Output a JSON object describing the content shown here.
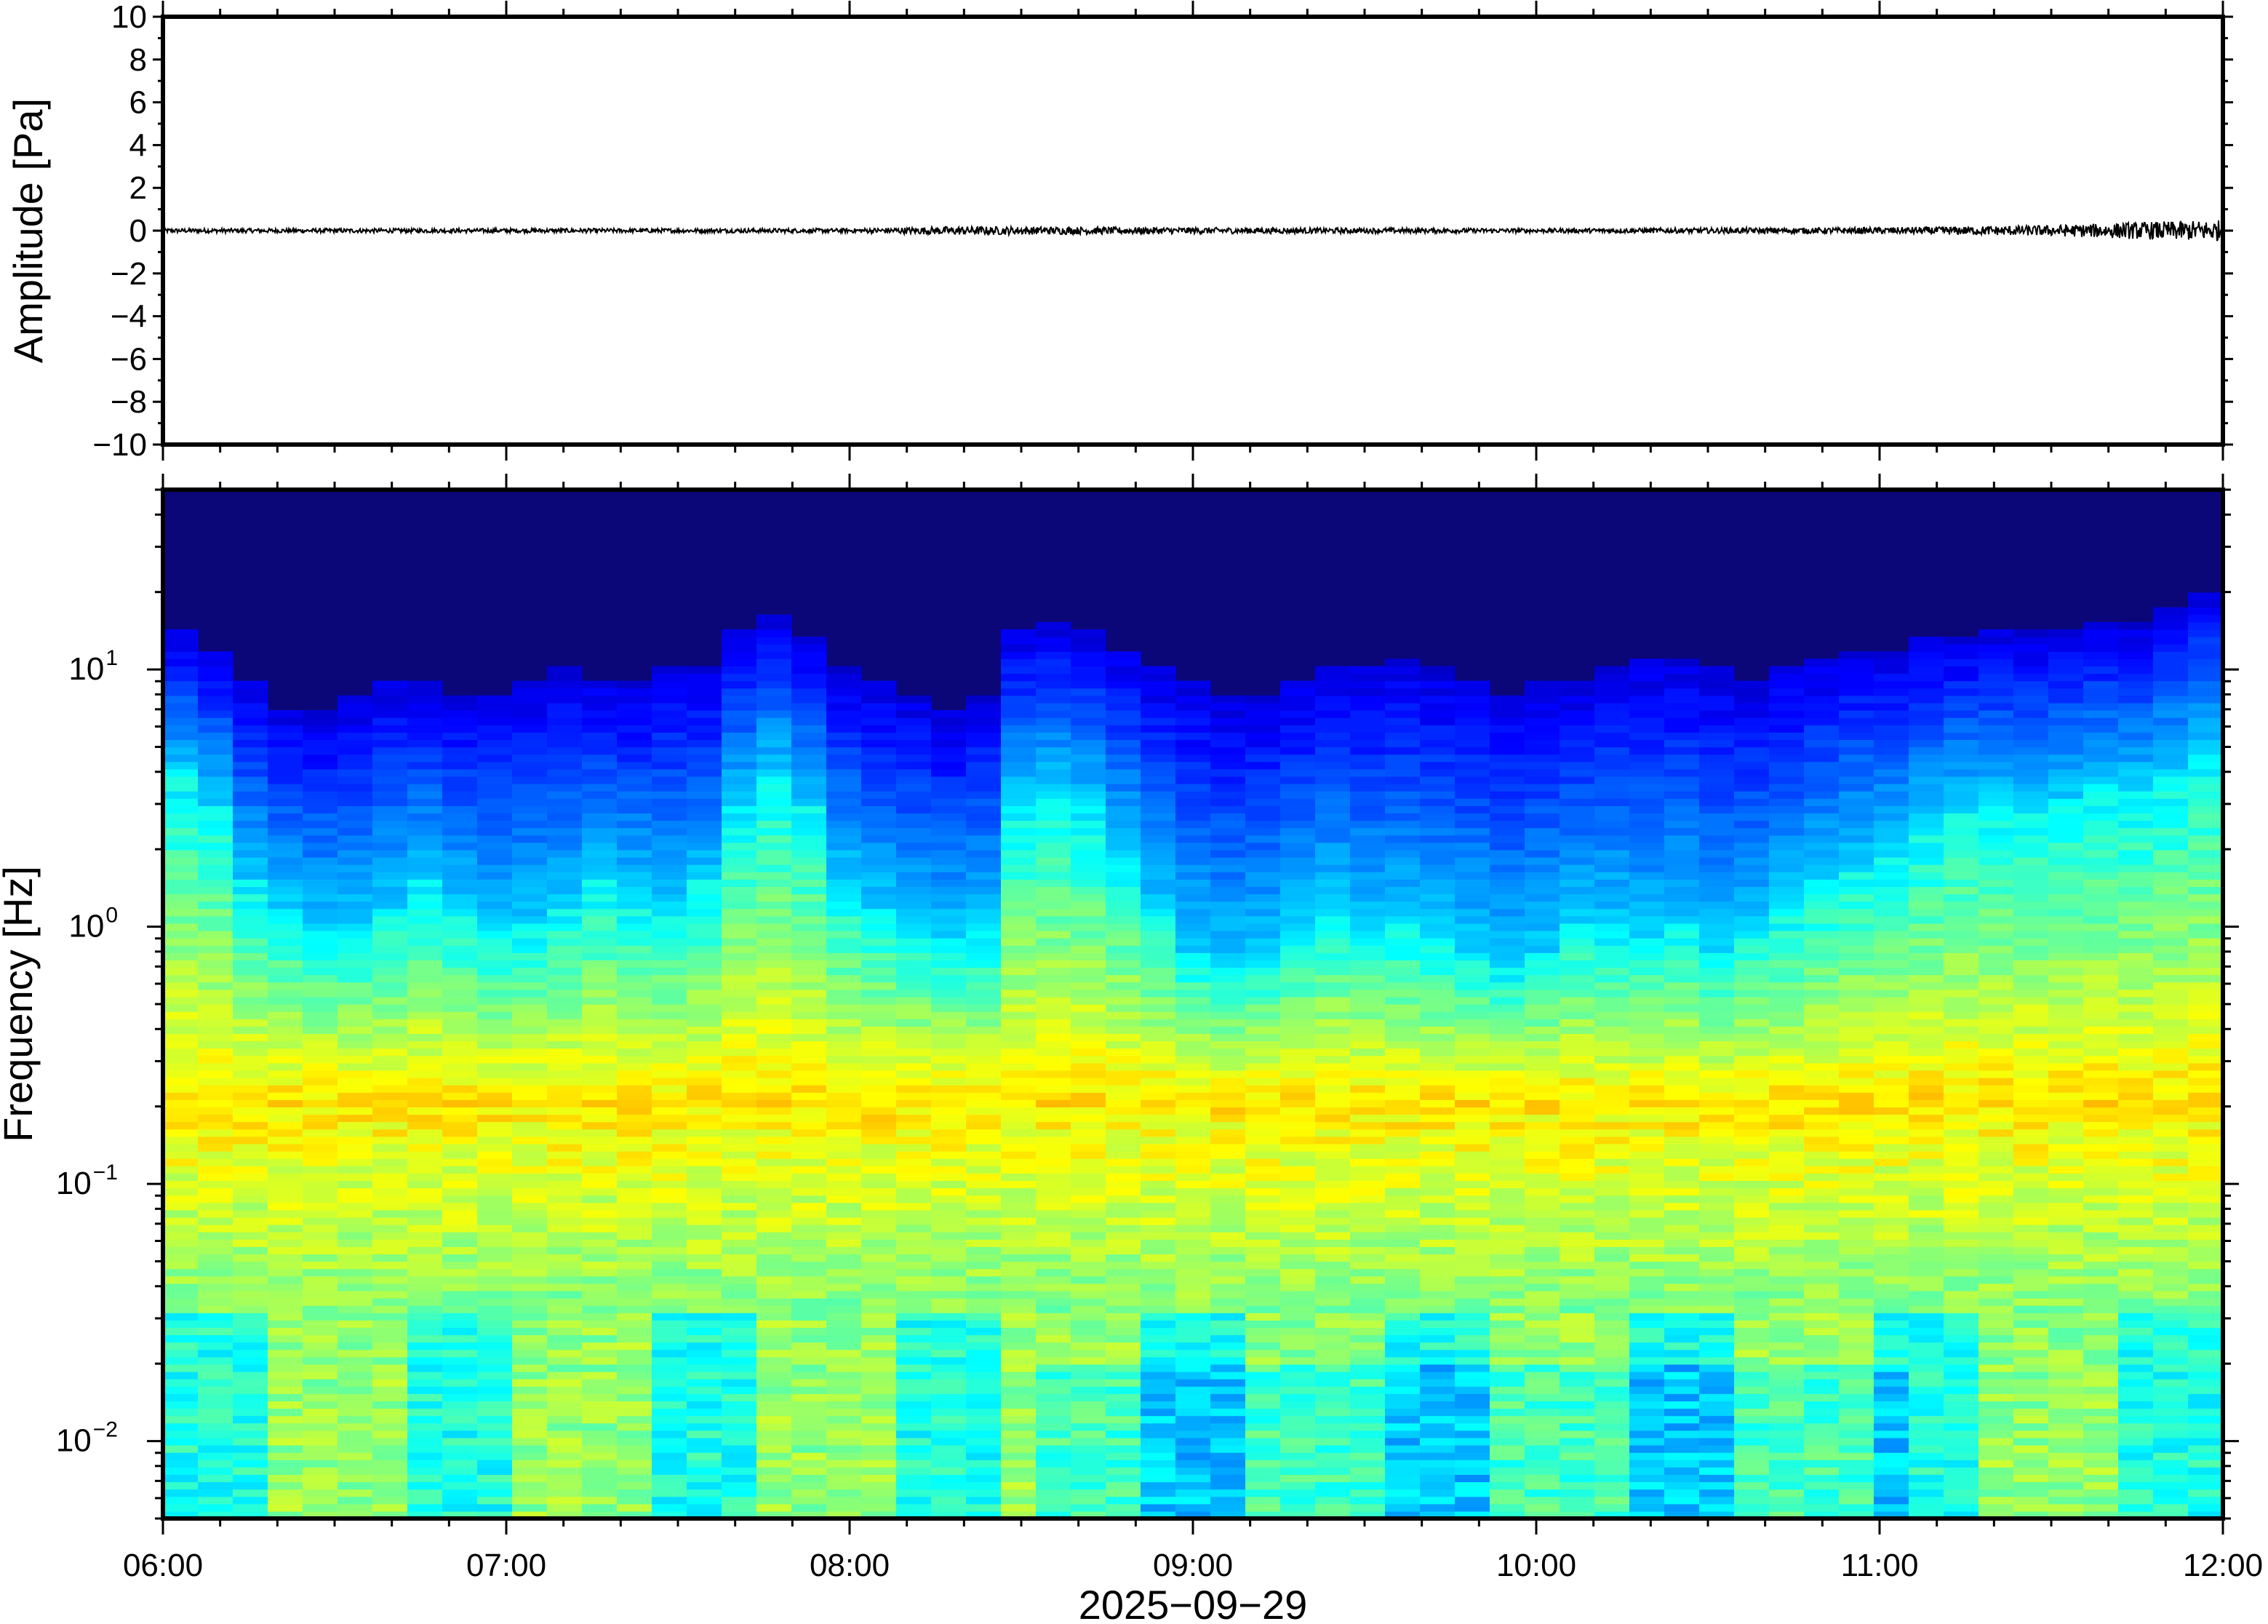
{
  "chart_data": [
    {
      "type": "line",
      "ylabel": "Amplitude [Pa]",
      "ylim": [
        -10,
        10
      ],
      "yticks": [
        10,
        8,
        6,
        4,
        2,
        0,
        -2,
        -4,
        -6,
        -8,
        -10
      ],
      "ytick_labels": [
        "10",
        "8",
        "6",
        "4",
        "2",
        "0",
        "−2",
        "−4",
        "−6",
        "−8",
        "−10"
      ],
      "series": [
        {
          "x_hours": [
            6.0,
            7.0,
            8.0,
            8.3,
            9.0,
            10.0,
            11.0,
            11.5,
            11.75,
            12.0
          ],
          "y_envelope": [
            0.1,
            0.1,
            0.1,
            0.2,
            0.15,
            0.1,
            0.15,
            0.25,
            0.4,
            0.5
          ]
        }
      ],
      "grid": false
    },
    {
      "type": "heatmap",
      "ylabel": "Frequency [Hz]",
      "yscale": "log",
      "ylim": [
        0.005,
        50
      ],
      "yticks": [
        0.01,
        0.1,
        1,
        10
      ],
      "ytick_labels": [
        {
          "base": "10",
          "exp": "−2"
        },
        {
          "base": "10",
          "exp": "−1"
        },
        {
          "base": "10",
          "exp": "0"
        },
        {
          "base": "10",
          "exp": "1"
        }
      ],
      "xlim": [
        "06:00",
        "12:00"
      ],
      "xticks": [
        "06:00",
        "07:00",
        "08:00",
        "09:00",
        "10:00",
        "11:00",
        "12:00"
      ],
      "xlabel": "2025−09−29",
      "colormap": "jet",
      "background_color": "#0c0778",
      "upper_cutoff_hz": [
        14,
        12,
        9,
        7,
        7,
        8,
        9,
        9,
        8,
        8,
        9,
        10,
        9,
        9,
        10,
        10,
        14,
        16,
        13,
        10,
        9,
        8,
        7,
        8,
        14,
        15,
        14,
        12,
        10,
        9,
        8,
        8,
        9,
        10,
        10,
        11,
        10,
        9,
        8,
        9,
        9,
        10,
        11,
        11,
        10,
        9,
        10,
        11,
        12,
        12,
        13,
        13,
        14,
        14,
        14,
        15,
        15,
        18,
        20
      ],
      "blue_floor_hz": [
        4,
        3,
        1.5,
        1.2,
        1.0,
        1.0,
        1.2,
        1.5,
        1.2,
        1.0,
        1.0,
        1.2,
        1.5,
        1.3,
        1.2,
        1.5,
        3,
        4,
        3,
        1.5,
        1.2,
        1.0,
        0.9,
        1.0,
        3,
        3.5,
        3,
        2,
        1.2,
        0.8,
        0.7,
        0.8,
        1.0,
        1.2,
        1.0,
        1.0,
        0.9,
        0.8,
        0.7,
        0.8,
        1.0,
        1.0,
        0.9,
        1.0,
        0.8,
        1.0,
        1.2,
        1.5,
        1.8,
        2,
        2.5,
        3,
        3,
        3,
        3.2,
        3.5,
        3.5,
        4,
        5
      ]
    }
  ]
}
